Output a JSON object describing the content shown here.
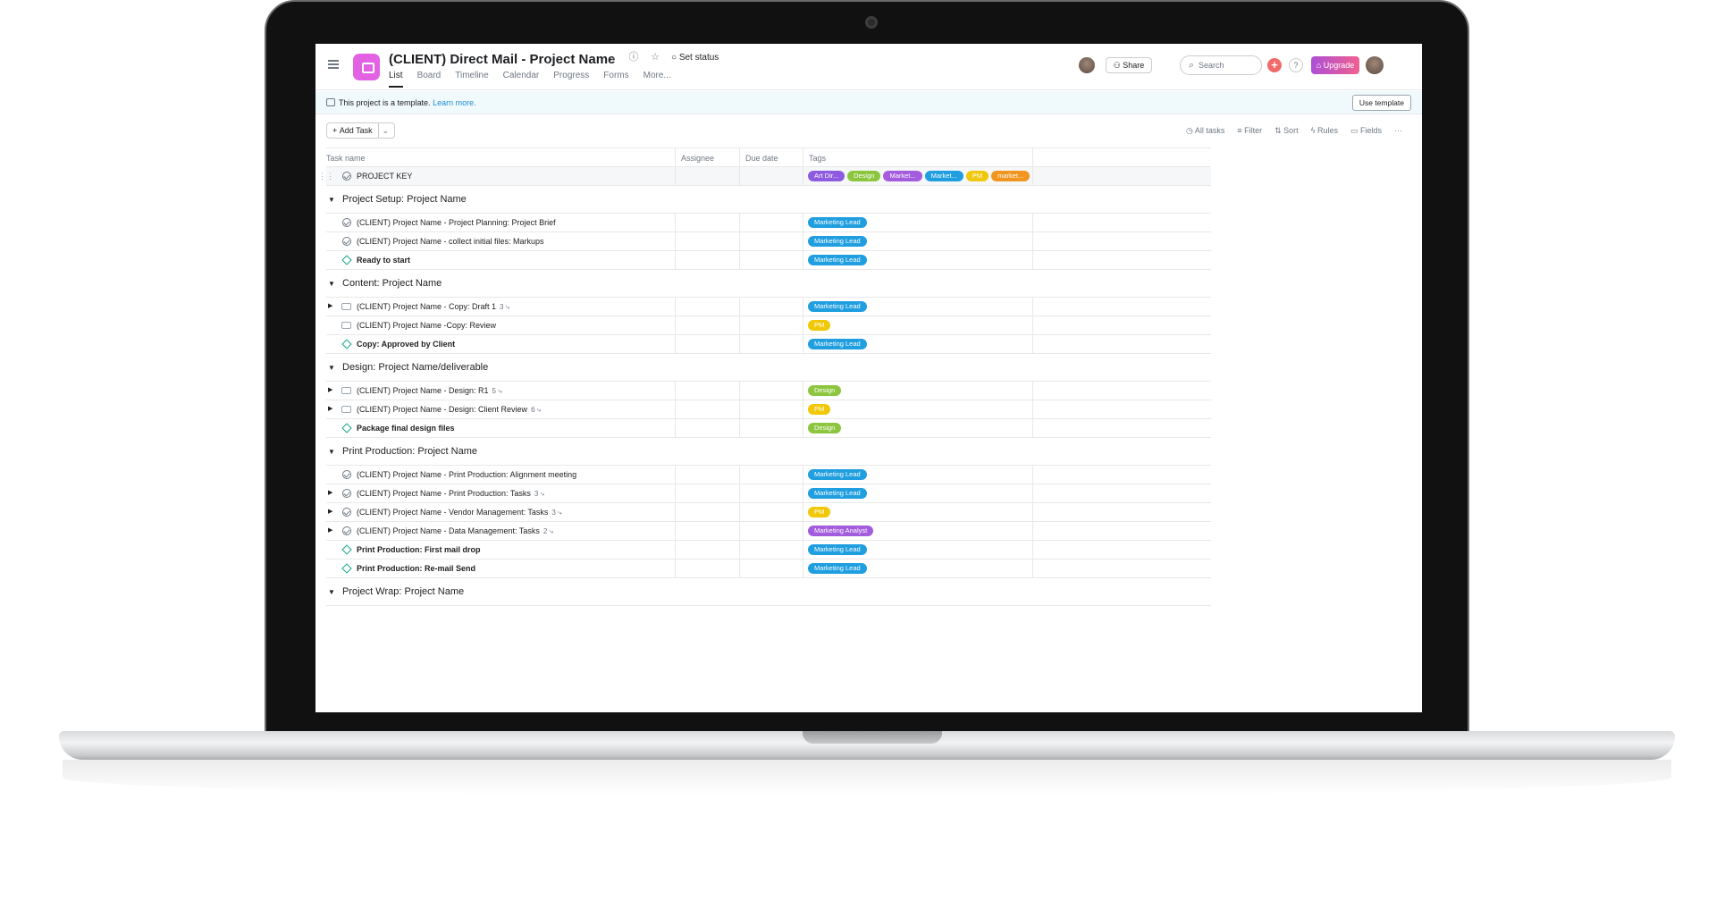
{
  "header": {
    "title": "(CLIENT) Direct Mail - Project Name",
    "set_status": "Set status",
    "tabs": [
      "List",
      "Board",
      "Timeline",
      "Calendar",
      "Progress",
      "Forms",
      "More..."
    ],
    "share_label": "Share",
    "search_placeholder": "Search",
    "upgrade_label": "Upgrade"
  },
  "banner": {
    "text": "This project is a template.",
    "link": "Learn more.",
    "use_template": "Use template"
  },
  "toolbar": {
    "add_task": "Add Task",
    "all_tasks": "All tasks",
    "filter": "Filter",
    "sort": "Sort",
    "rules": "Rules",
    "fields": "Fields"
  },
  "columns": [
    "Task name",
    "Assignee",
    "Due date",
    "Tags"
  ],
  "tag_colors": {
    "Art Dir...": "#9b5de5",
    "Design": "#8cc63f",
    "Market...": "#9b5de5",
    "Market... (blue)": "#1f9ee0",
    "PM": "#f0c808",
    "market...": "#f0951f",
    "Marketing Lead": "#1f9ee0",
    "Marketing Analyst": "#a35cde"
  },
  "project_key": {
    "name": "PROJECT KEY",
    "tags": [
      {
        "label": "Art Dir...",
        "color": "#8e5be0"
      },
      {
        "label": "Design",
        "color": "#8cc63f"
      },
      {
        "label": "Market...",
        "color": "#a35cde"
      },
      {
        "label": "Market...",
        "color": "#1f9ee0"
      },
      {
        "label": "PM",
        "color": "#f0c808"
      },
      {
        "label": "market...",
        "color": "#f0951f"
      }
    ]
  },
  "sections": [
    {
      "title": "Project Setup: Project Name",
      "tasks": [
        {
          "name": "(CLIENT) Project Name - Project Planning: Project Brief",
          "type": "check",
          "expand": false,
          "sub": "",
          "bold": false,
          "tag": "Marketing Lead",
          "tag_color": "#1f9ee0"
        },
        {
          "name": "(CLIENT) Project Name - collect initial files: Markups",
          "type": "check",
          "expand": false,
          "sub": "",
          "bold": false,
          "tag": "Marketing Lead",
          "tag_color": "#1f9ee0"
        },
        {
          "name": "Ready to start",
          "type": "milestone",
          "expand": false,
          "sub": "",
          "bold": true,
          "tag": "Marketing Lead",
          "tag_color": "#1f9ee0"
        }
      ]
    },
    {
      "title": "Content: Project Name",
      "tasks": [
        {
          "name": "(CLIENT) Project Name - Copy: Draft 1",
          "type": "subtask",
          "expand": true,
          "sub": "3",
          "bold": false,
          "tag": "Marketing Lead",
          "tag_color": "#1f9ee0"
        },
        {
          "name": "(CLIENT)  Project Name -Copy: Review",
          "type": "subtask",
          "expand": false,
          "sub": "",
          "bold": false,
          "tag": "PM",
          "tag_color": "#f0c808"
        },
        {
          "name": "Copy: Approved by Client",
          "type": "milestone",
          "expand": false,
          "sub": "",
          "bold": true,
          "tag": "Marketing Lead",
          "tag_color": "#1f9ee0"
        }
      ]
    },
    {
      "title": "Design: Project Name/deliverable",
      "tasks": [
        {
          "name": "(CLIENT) Project Name - Design: R1",
          "type": "subtask",
          "expand": true,
          "sub": "5",
          "bold": false,
          "tag": "Design",
          "tag_color": "#8cc63f"
        },
        {
          "name": "(CLIENT) Project Name - Design: Client Review",
          "type": "subtask",
          "expand": true,
          "sub": "6",
          "bold": false,
          "tag": "PM",
          "tag_color": "#f0c808"
        },
        {
          "name": "Package final design files",
          "type": "milestone",
          "expand": false,
          "sub": "",
          "bold": true,
          "tag": "Design",
          "tag_color": "#8cc63f"
        }
      ]
    },
    {
      "title": "Print Production: Project Name",
      "tasks": [
        {
          "name": "(CLIENT) Project Name - Print Production: Alignment meeting",
          "type": "check",
          "expand": false,
          "sub": "",
          "bold": false,
          "tag": "Marketing Lead",
          "tag_color": "#1f9ee0"
        },
        {
          "name": "(CLIENT) Project Name - Print Production: Tasks",
          "type": "check",
          "expand": true,
          "sub": "3",
          "bold": false,
          "tag": "Marketing Lead",
          "tag_color": "#1f9ee0"
        },
        {
          "name": "(CLIENT) Project Name - Vendor Management: Tasks",
          "type": "check",
          "expand": true,
          "sub": "3",
          "bold": false,
          "tag": "PM",
          "tag_color": "#f0c808"
        },
        {
          "name": "(CLIENT) Project Name - Data Management: Tasks",
          "type": "check",
          "expand": true,
          "sub": "2",
          "bold": false,
          "tag": "Marketing Analyst",
          "tag_color": "#a35cde"
        },
        {
          "name": "Print Production: First mail drop",
          "type": "milestone",
          "expand": false,
          "sub": "",
          "bold": true,
          "tag": "Marketing Lead",
          "tag_color": "#1f9ee0"
        },
        {
          "name": "Print Production: Re-mail Send",
          "type": "milestone",
          "expand": false,
          "sub": "",
          "bold": true,
          "tag": "Marketing Lead",
          "tag_color": "#1f9ee0"
        }
      ]
    },
    {
      "title": "Project Wrap: Project Name",
      "tasks": []
    }
  ]
}
